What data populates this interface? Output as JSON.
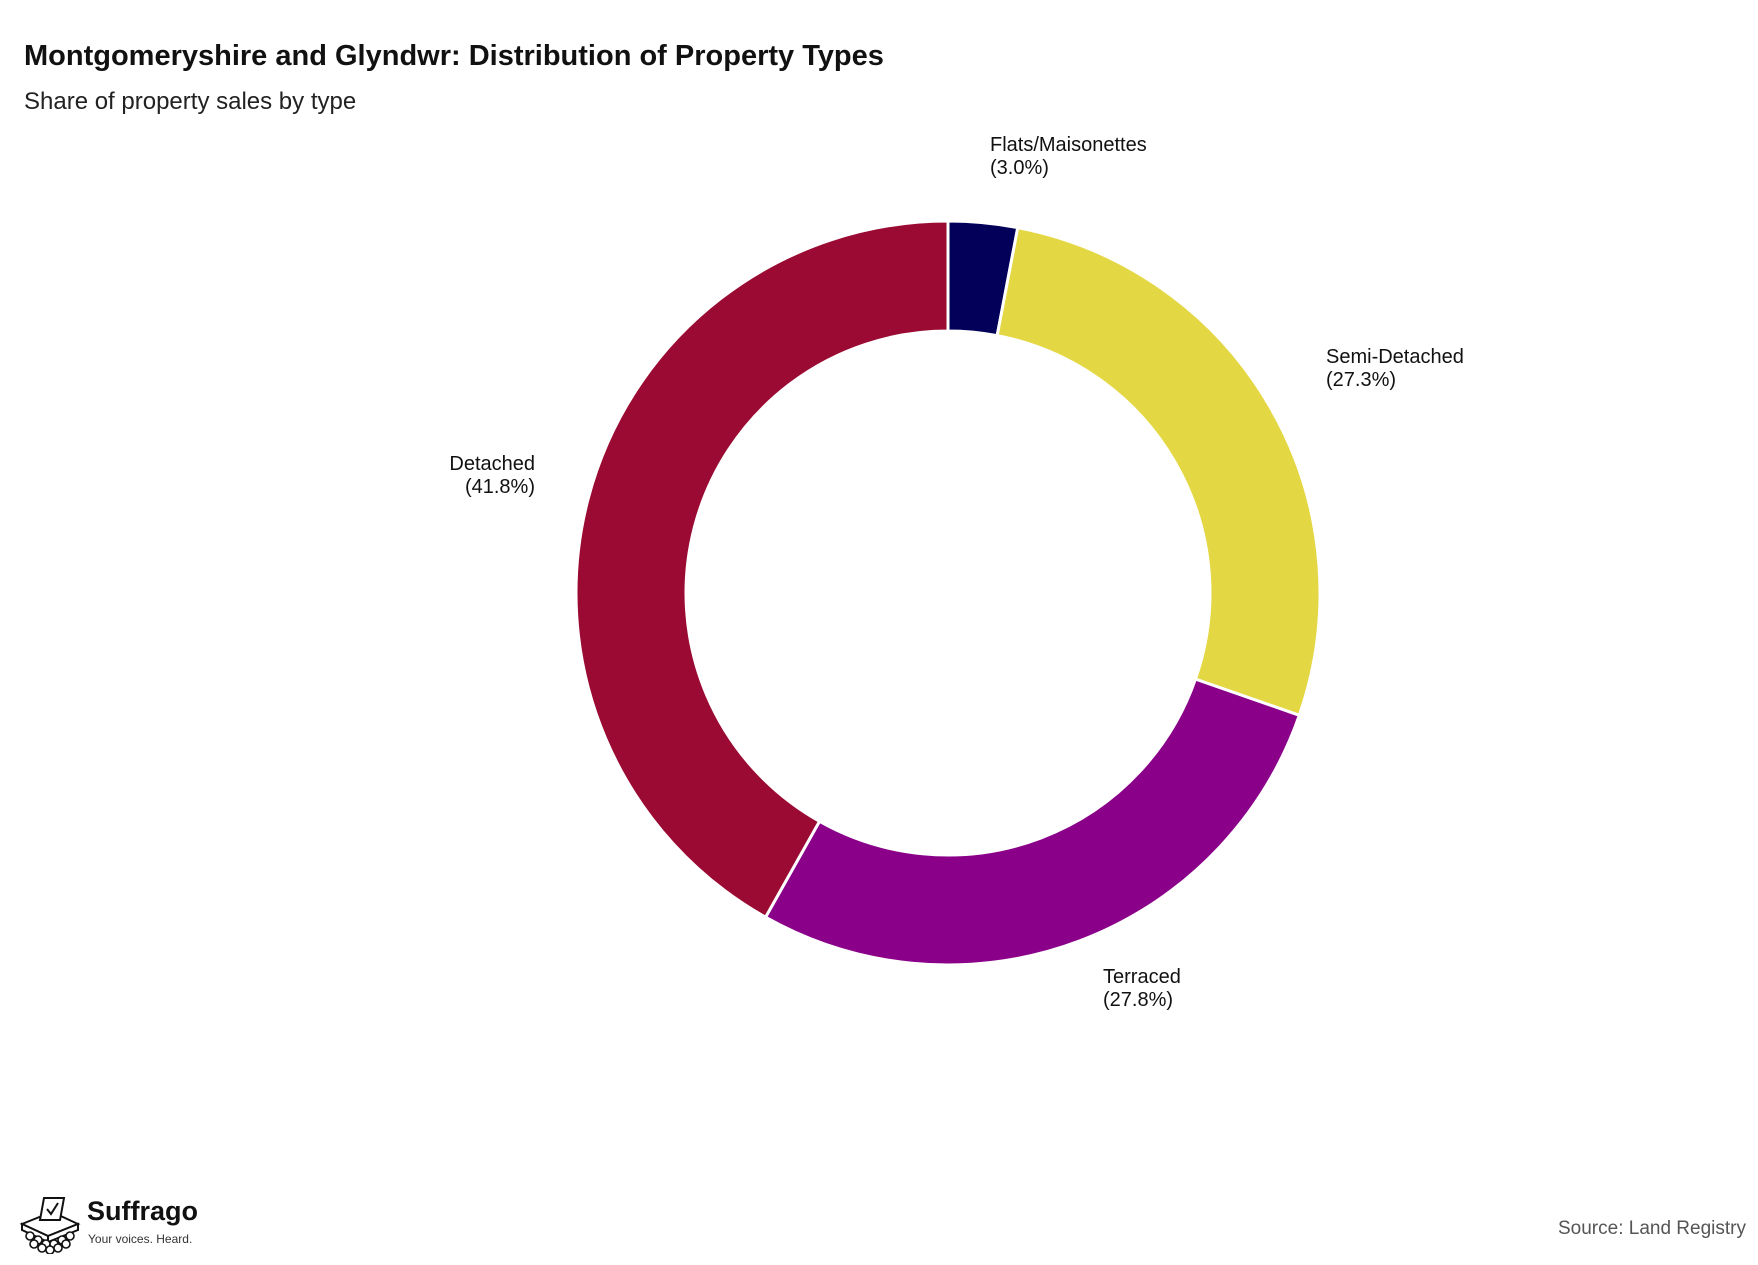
{
  "header": {
    "title": "Montgomeryshire and Glyndwr: Distribution of Property Types",
    "subtitle": "Share of property sales by type"
  },
  "chart_data": {
    "type": "pie",
    "style": "donut",
    "start": "top, clockwise",
    "slices": [
      {
        "label": "Flats/Maisonettes",
        "value": 3.0,
        "value_label": "(3.0%)",
        "color": "#020059"
      },
      {
        "label": "Semi-Detached",
        "value": 27.3,
        "value_label": "(27.3%)",
        "color": "#E4D744"
      },
      {
        "label": "Terraced",
        "value": 27.8,
        "value_label": "(27.8%)",
        "color": "#8A0089"
      },
      {
        "label": "Detached",
        "value": 41.8,
        "value_label": "(41.8%)",
        "color": "#9A0A32"
      }
    ]
  },
  "footer": {
    "logo_name": "Suffrago",
    "logo_tagline": "Your voices. Heard.",
    "logo_icon": "ballot-box-icon",
    "source": "Source: Land Registry"
  }
}
